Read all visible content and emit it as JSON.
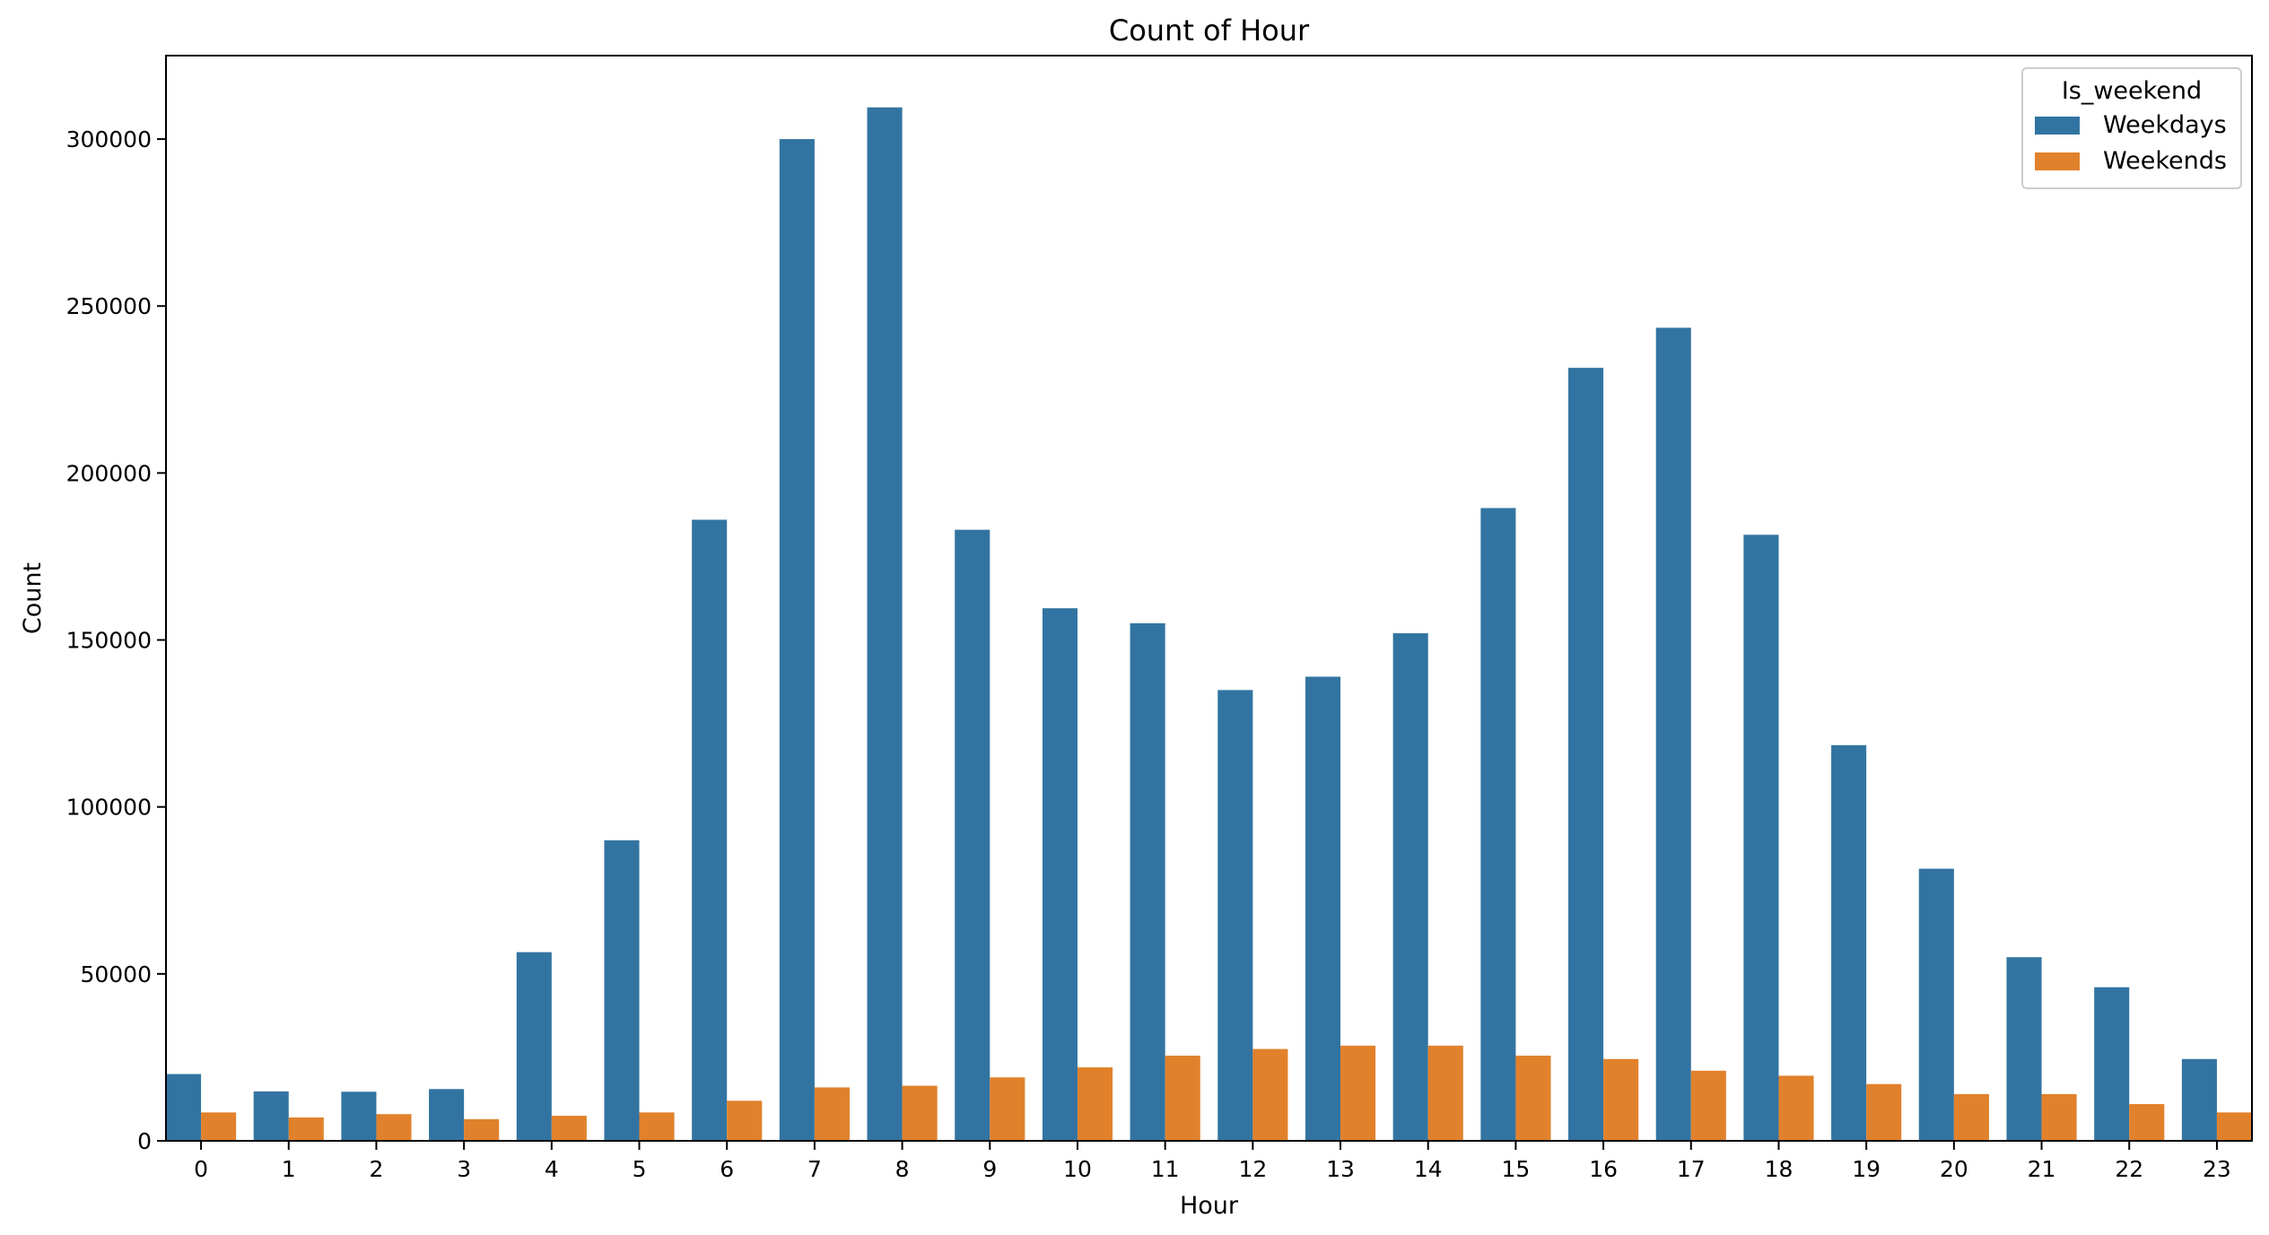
{
  "chart_data": {
    "type": "bar",
    "title": "Count of Hour",
    "xlabel": "Hour",
    "ylabel": "Count",
    "ylim": [
      0,
      325000
    ],
    "yticks": [
      0,
      50000,
      100000,
      150000,
      200000,
      250000,
      300000
    ],
    "categories": [
      "0",
      "1",
      "2",
      "3",
      "4",
      "5",
      "6",
      "7",
      "8",
      "9",
      "10",
      "11",
      "12",
      "13",
      "14",
      "15",
      "16",
      "17",
      "18",
      "19",
      "20",
      "21",
      "22",
      "23"
    ],
    "legend": {
      "title": "Is_weekend",
      "position": "top-right"
    },
    "series": [
      {
        "name": "Weekdays",
        "color": "#3274a1",
        "values": [
          20000,
          14800,
          14700,
          15500,
          56500,
          90000,
          186000,
          300000,
          309500,
          183000,
          159500,
          155000,
          135000,
          139000,
          152000,
          189500,
          231500,
          243500,
          181500,
          118500,
          81500,
          55000,
          46000,
          24500
        ]
      },
      {
        "name": "Weekends",
        "color": "#e1812c",
        "values": [
          8500,
          7000,
          8000,
          6500,
          7500,
          8500,
          12000,
          16000,
          16500,
          19000,
          22000,
          25500,
          27500,
          28500,
          28500,
          25500,
          24500,
          21000,
          19500,
          17000,
          14000,
          14000,
          11000,
          8500
        ]
      }
    ]
  }
}
